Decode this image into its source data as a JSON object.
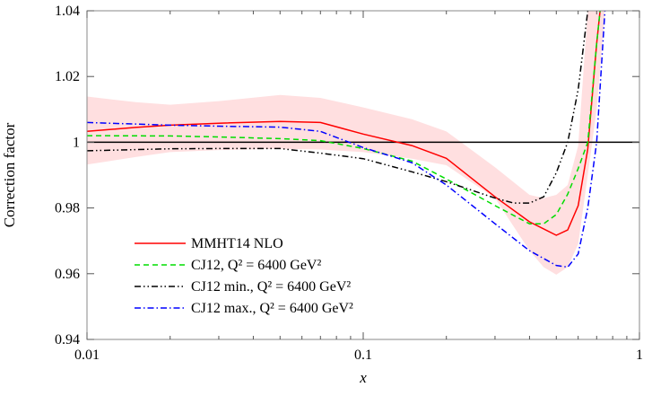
{
  "chart_data": {
    "type": "line",
    "title": "",
    "xlabel": "x",
    "ylabel": "Correction factor",
    "xscale": "log",
    "xlim": [
      0.01,
      1
    ],
    "ylim": [
      0.94,
      1.04
    ],
    "grid": false,
    "legend_position": "bottom-left",
    "x_ticks": [
      {
        "v": 0.01,
        "label": "0.01"
      },
      {
        "v": 0.1,
        "label": "0.1"
      },
      {
        "v": 1,
        "label": "1"
      }
    ],
    "y_ticks": [
      {
        "v": 0.94,
        "label": "0.94"
      },
      {
        "v": 0.96,
        "label": "0.96"
      },
      {
        "v": 0.98,
        "label": "0.98"
      },
      {
        "v": 1.0,
        "label": "1"
      },
      {
        "v": 1.02,
        "label": "1.02"
      },
      {
        "v": 1.04,
        "label": "1.04"
      }
    ],
    "reference_line": 1.0,
    "band": {
      "color": "#ffdfe0",
      "x": [
        0.01,
        0.015,
        0.02,
        0.03,
        0.05,
        0.07,
        0.1,
        0.15,
        0.2,
        0.3,
        0.4,
        0.45,
        0.5,
        0.55,
        0.6,
        0.65,
        0.7,
        0.75
      ],
      "upper": [
        1.0139,
        1.0122,
        1.0114,
        1.0125,
        1.0144,
        1.0135,
        1.0106,
        1.007,
        1.0033,
        0.9924,
        0.984,
        0.983,
        0.984,
        0.987,
        0.9989,
        1.04,
        1.04,
        1.04
      ],
      "lower": [
        0.9932,
        0.9955,
        0.997,
        0.9976,
        0.998,
        0.9978,
        0.997,
        0.995,
        0.993,
        0.983,
        0.967,
        0.962,
        0.9597,
        0.962,
        0.969,
        0.99,
        1.01,
        1.04
      ]
    },
    "series": [
      {
        "name": "MMHT14 NLO",
        "color": "#ff0000",
        "dash": "",
        "x": [
          0.01,
          0.015,
          0.02,
          0.03,
          0.05,
          0.07,
          0.1,
          0.15,
          0.2,
          0.3,
          0.4,
          0.5,
          0.55,
          0.6,
          0.65,
          0.7,
          0.72
        ],
        "y": [
          1.0033,
          1.0045,
          1.0052,
          1.0058,
          1.0063,
          1.006,
          1.0025,
          0.999,
          0.9951,
          0.9834,
          0.9758,
          0.9717,
          0.9733,
          0.9807,
          0.998,
          1.03,
          1.04
        ]
      },
      {
        "name": "CJ12, Q² = 6400 GeV²",
        "color": "#00dd00",
        "dash": "6,4",
        "x": [
          0.01,
          0.02,
          0.03,
          0.05,
          0.07,
          0.1,
          0.15,
          0.2,
          0.3,
          0.4,
          0.45,
          0.5,
          0.55,
          0.6,
          0.65,
          0.7,
          0.72
        ],
        "y": [
          1.002,
          1.0019,
          1.0016,
          1.0011,
          1.0005,
          0.9981,
          0.9943,
          0.9888,
          0.9807,
          0.9752,
          0.9752,
          0.978,
          0.9842,
          0.992,
          1.0,
          1.03,
          1.04
        ]
      },
      {
        "name": "CJ12 min., Q² = 6400 GeV²",
        "color": "#000000",
        "dash": "7,3,1.5,3,1.5,3",
        "x": [
          0.01,
          0.02,
          0.03,
          0.05,
          0.07,
          0.1,
          0.15,
          0.2,
          0.3,
          0.35,
          0.4,
          0.45,
          0.5,
          0.55,
          0.6,
          0.65
        ],
        "y": [
          0.9974,
          0.998,
          0.9981,
          0.9981,
          0.9967,
          0.995,
          0.991,
          0.988,
          0.983,
          0.9815,
          0.9815,
          0.9834,
          0.9907,
          1.0,
          1.016,
          1.04
        ]
      },
      {
        "name": "CJ12 max., Q² = 6400 GeV²",
        "color": "#0000ff",
        "dash": "7,3,1.5,3",
        "x": [
          0.01,
          0.02,
          0.03,
          0.05,
          0.07,
          0.1,
          0.15,
          0.2,
          0.3,
          0.4,
          0.5,
          0.55,
          0.6,
          0.65,
          0.7,
          0.75
        ],
        "y": [
          1.006,
          1.0052,
          1.0049,
          1.0046,
          1.0033,
          0.9984,
          0.9938,
          0.987,
          0.9752,
          0.967,
          0.9625,
          0.962,
          0.966,
          0.98,
          1.0,
          1.04
        ]
      }
    ]
  }
}
